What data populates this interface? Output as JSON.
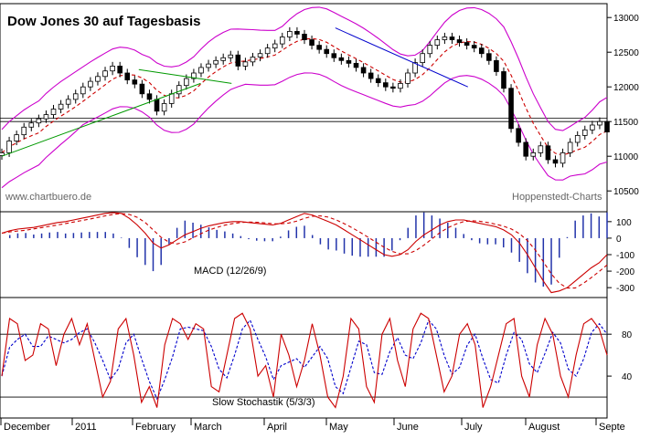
{
  "chart_data": [
    {
      "type": "candlestick",
      "title": "Dow Jones 30 auf Tagesbasis",
      "watermark_left": "www.chartbuero.de",
      "watermark_right": "Hoppenstedt-Charts",
      "ylim": [
        10200,
        13200
      ],
      "yticks": [
        10500,
        11000,
        11500,
        12000,
        12500,
        13000
      ],
      "series": [
        {
          "name": "",
          "values": [
            11050,
            11220,
            11310,
            11420,
            11480,
            11540,
            11600,
            11680,
            11750,
            11820,
            11900,
            12000,
            12080,
            12150,
            12230,
            12300,
            12200,
            12100,
            12040,
            11900,
            11820,
            11650,
            11760,
            11900,
            12020,
            12120,
            12200,
            12280,
            12330,
            12380,
            12420,
            12460,
            12300,
            12360,
            12430,
            12480,
            12560,
            12620,
            12720,
            12800,
            12760,
            12680,
            12600,
            12540,
            12480,
            12420,
            12380,
            12340,
            12280,
            12200,
            12120,
            12060,
            12000,
            11980,
            12050,
            12200,
            12350,
            12480,
            12600,
            12680,
            12720,
            12680,
            12640,
            12600,
            12560,
            12480,
            12380,
            12220,
            11980,
            11400,
            11200,
            11000,
            11050,
            11150,
            10950,
            10900,
            11050,
            11200,
            11300,
            11380,
            11450,
            11500,
            11350
          ]
        }
      ],
      "trendlines": [
        {
          "from": [
            "2010-12-01",
            11000
          ],
          "to": [
            "2011-03-01",
            12050
          ]
        },
        {
          "from": [
            "2011-02-01",
            12250
          ],
          "to": [
            "2011-03-15",
            12050
          ]
        },
        {
          "from": [
            "2011-05-01",
            12850
          ],
          "to": [
            "2011-06-30",
            12000
          ]
        }
      ],
      "hlines": [
        11500,
        11550
      ]
    },
    {
      "type": "line",
      "title": "MACD (12/26/9)",
      "ylim": [
        -360,
        160
      ],
      "yticks": [
        100,
        0,
        -100,
        -200,
        -300
      ],
      "series": [
        {
          "name": "",
          "values": [
            30,
            45,
            55,
            60,
            65,
            75,
            85,
            95,
            100,
            110,
            120,
            130,
            140,
            150,
            155,
            150,
            120,
            80,
            30,
            -30,
            -60,
            -40,
            -10,
            20,
            40,
            60,
            75,
            85,
            95,
            100,
            100,
            95,
            90,
            85,
            80,
            90,
            110,
            130,
            150,
            140,
            120,
            100,
            80,
            50,
            20,
            -10,
            -40,
            -70,
            -100,
            -110,
            -100,
            -70,
            -20,
            20,
            50,
            80,
            100,
            110,
            110,
            100,
            90,
            80,
            70,
            50,
            20,
            -30,
            -100,
            -180,
            -260,
            -330,
            -320,
            -300,
            -260,
            -220,
            -180,
            -150,
            -100
          ]
        }
      ]
    },
    {
      "type": "line",
      "title": "Slow Stochastik (5/3/3)",
      "ylim": [
        0,
        115
      ],
      "yticks": [
        80,
        40
      ],
      "hlines": [
        80,
        20
      ],
      "series": [
        {
          "name": "",
          "values": [
            40,
            95,
            90,
            55,
            60,
            90,
            85,
            50,
            80,
            95,
            70,
            90,
            55,
            20,
            35,
            85,
            95,
            60,
            15,
            30,
            10,
            70,
            95,
            90,
            75,
            90,
            85,
            30,
            25,
            60,
            95,
            100,
            85,
            40,
            50,
            20,
            80,
            60,
            30,
            55,
            90,
            60,
            20,
            10,
            40,
            95,
            85,
            30,
            15,
            80,
            95,
            55,
            30,
            85,
            100,
            95,
            60,
            25,
            40,
            80,
            90,
            70,
            10,
            30,
            60,
            90,
            95,
            40,
            20,
            70,
            95,
            80,
            40,
            20,
            60,
            90,
            95,
            85,
            60
          ]
        }
      ]
    }
  ],
  "x_axis": {
    "labels": [
      "December",
      "2011",
      "February",
      "March",
      "April",
      "May",
      "June",
      "July",
      "August",
      "Septe"
    ]
  },
  "colors": {
    "candle": "#000000",
    "bollinger": "#cc00cc",
    "ma_dashed": "#cc0000",
    "macd_line": "#cc0000",
    "histogram": "#2233aa",
    "trend_green": "#009900",
    "trend_blue": "#0000cc",
    "stoch_fast": "#cc0000",
    "stoch_slow": "#0000cc",
    "grid": "#000000"
  }
}
